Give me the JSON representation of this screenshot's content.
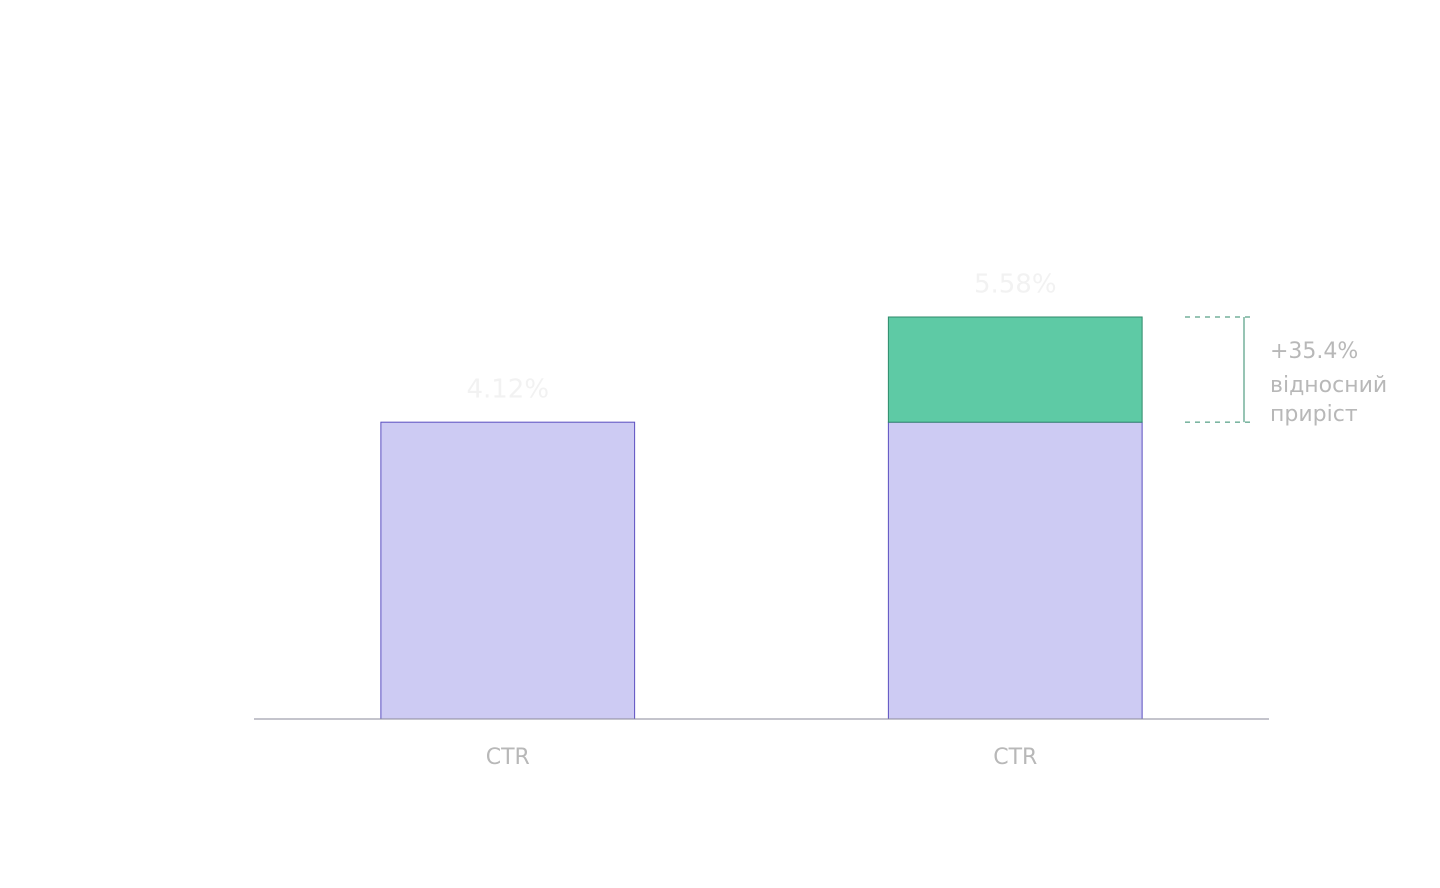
{
  "chart_data": {
    "type": "stacked_bar",
    "categories": [
      "CTR",
      "CTR"
    ],
    "series": [
      {
        "color": "#cdcbf3",
        "stroke": "#5b4fc0",
        "values": [
          4.12,
          4.12
        ]
      },
      {
        "color": "#5ecaa5",
        "stroke": "#2f8a6a",
        "values": [
          null,
          1.46
        ]
      }
    ],
    "totals": [
      4.12,
      5.58
    ],
    "total_labels": [
      "4.12%",
      "5.58%"
    ],
    "annotation": {
      "label": "+35.4%",
      "lines": [
        "відносний",
        "приріст"
      ]
    }
  }
}
